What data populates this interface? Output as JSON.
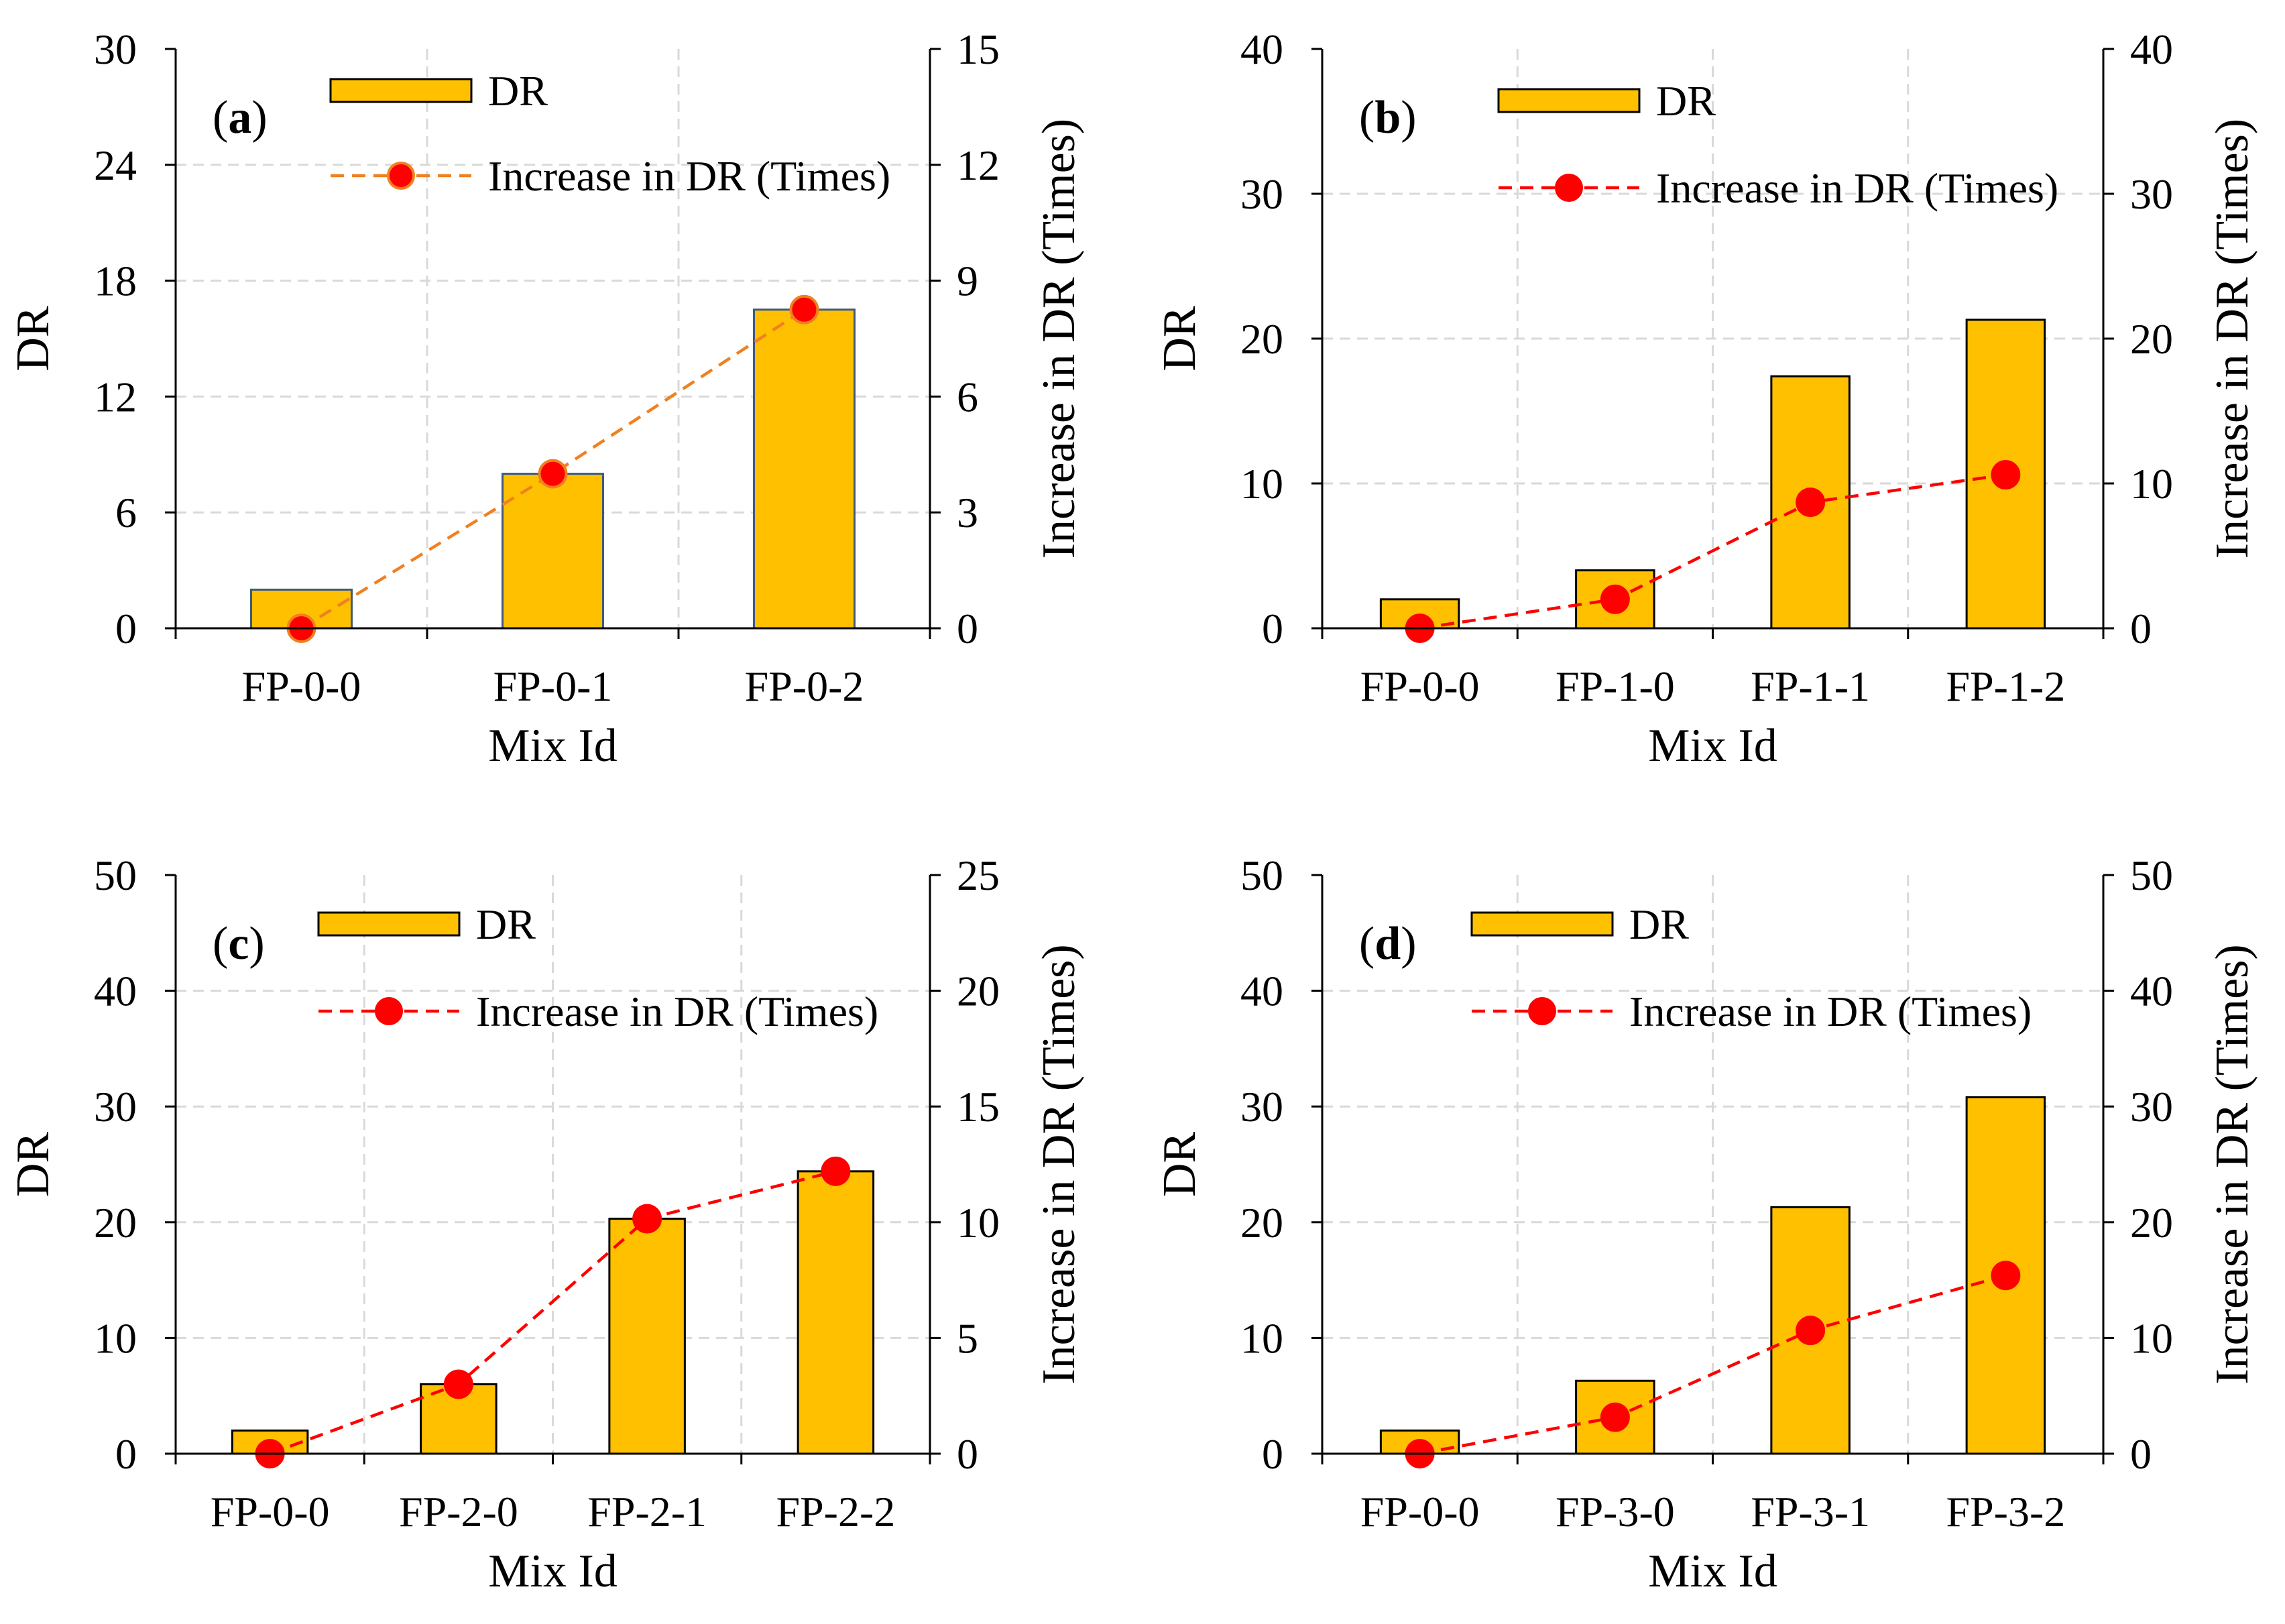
{
  "figure": {
    "background": "#ffffff"
  },
  "chart_data": [
    {
      "type": "bar+line",
      "panel_label": "(a)",
      "panel_letter": "a",
      "categories": [
        "FP-0-0",
        "FP-0-1",
        "FP-0-2"
      ],
      "series": [
        {
          "name": "DR",
          "kind": "bar",
          "axis": "left",
          "values": [
            2.0,
            8.0,
            16.5
          ],
          "color": "#FFC000",
          "edge": "#3F5A7A"
        },
        {
          "name": "Increase in DR (Times)",
          "kind": "line",
          "axis": "right",
          "values": [
            0,
            4.0,
            8.25
          ],
          "color": "#F08020",
          "marker": "#FF0000",
          "marker_edge": "#F08020"
        }
      ],
      "xlabel": "Mix Id",
      "ylabel": "DR",
      "y2label": "Increase in DR (Times)",
      "ylim": [
        0,
        30
      ],
      "yticks": [
        0,
        6,
        12,
        18,
        24,
        30
      ],
      "y2lim": [
        0,
        15
      ],
      "y2ticks": [
        0,
        3,
        6,
        9,
        12,
        15
      ],
      "legend_position": "top-center",
      "grid": true
    },
    {
      "type": "bar+line",
      "panel_label": "(b)",
      "panel_letter": "b",
      "categories": [
        "FP-0-0",
        "FP-1-0",
        "FP-1-1",
        "FP-1-2"
      ],
      "series": [
        {
          "name": "DR",
          "kind": "bar",
          "axis": "left",
          "values": [
            2.0,
            4.0,
            17.4,
            21.3
          ],
          "color": "#FFC000",
          "edge": "#000000"
        },
        {
          "name": "Increase in DR (Times)",
          "kind": "line",
          "axis": "right",
          "values": [
            0,
            2.0,
            8.7,
            10.6
          ],
          "color": "#FF0000",
          "marker": "#FF0000",
          "marker_edge": "#FF0000"
        }
      ],
      "xlabel": "Mix Id",
      "ylabel": "DR",
      "y2label": "Increase in DR (Times)",
      "ylim": [
        0,
        40
      ],
      "yticks": [
        0,
        10,
        20,
        30,
        40
      ],
      "y2lim": [
        0,
        40
      ],
      "y2ticks": [
        0,
        10,
        20,
        30,
        40
      ],
      "legend_position": "top-center",
      "grid": true
    },
    {
      "type": "bar+line",
      "panel_label": "(c)",
      "panel_letter": "c",
      "categories": [
        "FP-0-0",
        "FP-2-0",
        "FP-2-1",
        "FP-2-2"
      ],
      "series": [
        {
          "name": "DR",
          "kind": "bar",
          "axis": "left",
          "values": [
            2.0,
            6.0,
            20.3,
            24.4
          ],
          "color": "#FFC000",
          "edge": "#000000"
        },
        {
          "name": "Increase in DR (Times)",
          "kind": "line",
          "axis": "right",
          "values": [
            0,
            3.0,
            10.15,
            12.2
          ],
          "color": "#FF0000",
          "marker": "#FF0000",
          "marker_edge": "#FF0000"
        }
      ],
      "xlabel": "Mix Id",
      "ylabel": "DR",
      "y2label": "Increase in DR (Times)",
      "ylim": [
        0,
        50
      ],
      "yticks": [
        0,
        10,
        20,
        30,
        40,
        50
      ],
      "y2lim": [
        0,
        25
      ],
      "y2ticks": [
        0,
        5,
        10,
        15,
        20,
        25
      ],
      "legend_position": "top-center",
      "grid": true
    },
    {
      "type": "bar+line",
      "panel_label": "(d)",
      "panel_letter": "d",
      "categories": [
        "FP-0-0",
        "FP-3-0",
        "FP-3-1",
        "FP-3-2"
      ],
      "series": [
        {
          "name": "DR",
          "kind": "bar",
          "axis": "left",
          "values": [
            2.0,
            6.3,
            21.3,
            30.8
          ],
          "color": "#FFC000",
          "edge": "#000000"
        },
        {
          "name": "Increase in DR (Times)",
          "kind": "line",
          "axis": "right",
          "values": [
            0,
            3.15,
            10.65,
            15.4
          ],
          "color": "#FF0000",
          "marker": "#FF0000",
          "marker_edge": "#FF0000"
        }
      ],
      "xlabel": "Mix Id",
      "ylabel": "DR",
      "y2label": "Increase in DR (Times)",
      "ylim": [
        0,
        50
      ],
      "yticks": [
        0,
        10,
        20,
        30,
        40,
        50
      ],
      "y2lim": [
        0,
        50
      ],
      "y2ticks": [
        0,
        10,
        20,
        30,
        40,
        50
      ],
      "legend_position": "top-center",
      "grid": true
    }
  ]
}
